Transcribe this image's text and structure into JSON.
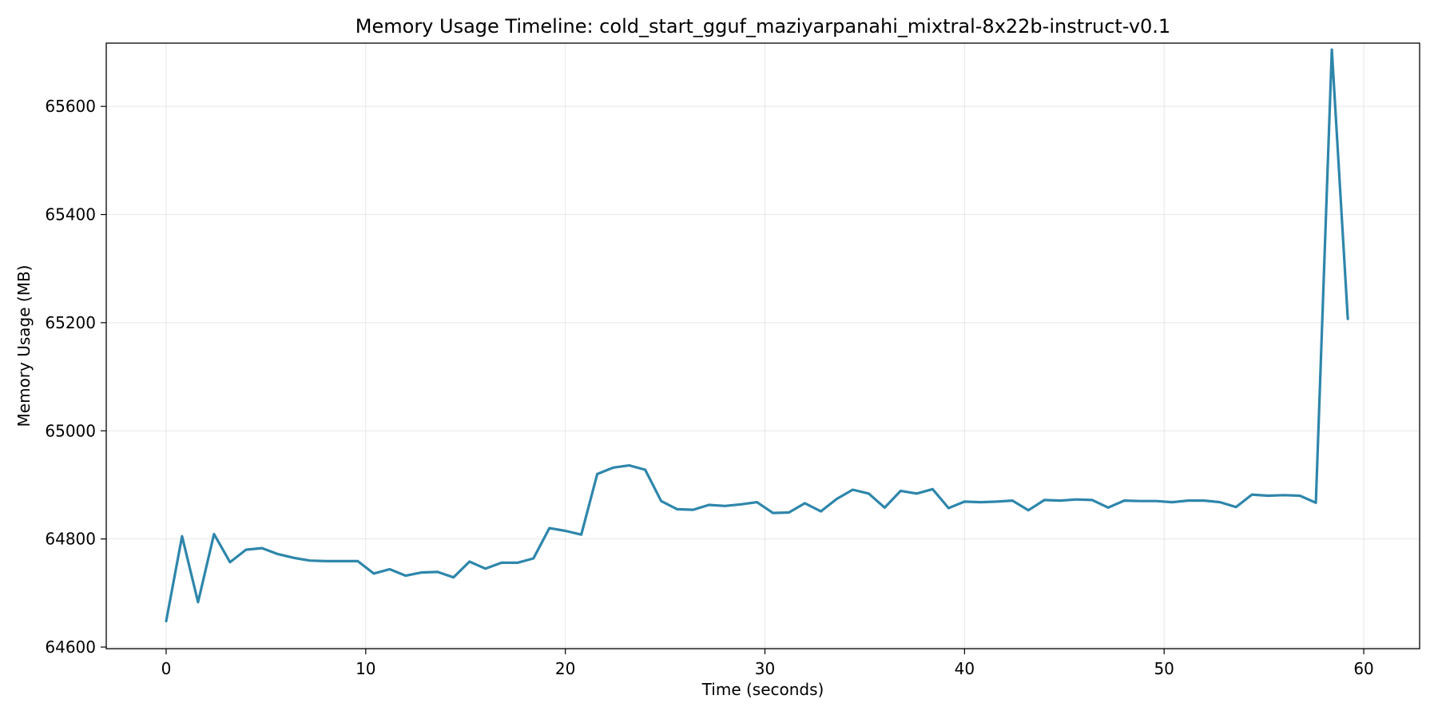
{
  "chart_data": {
    "type": "line",
    "title": "Memory Usage Timeline: cold_start_gguf_maziyarpanahi_mixtral-8x22b-instruct-v0.1",
    "xlabel": "Time (seconds)",
    "ylabel": "Memory Usage (MB)",
    "xlim": [
      -3,
      62.8
    ],
    "ylim": [
      64597,
      65717
    ],
    "x_ticks": [
      0,
      10,
      20,
      30,
      40,
      50,
      60
    ],
    "y_ticks": [
      64600,
      64800,
      65000,
      65200,
      65400,
      65600
    ],
    "grid": true,
    "line_color": "#2e86ab",
    "series": [
      {
        "x": [
          0,
          0.8,
          1.6,
          2.4,
          3.2,
          4.0,
          4.8,
          5.6,
          6.4,
          7.2,
          8.0,
          8.8,
          9.6,
          10.4,
          11.2,
          12.0,
          12.8,
          13.6,
          14.4,
          15.2,
          16.0,
          16.8,
          17.6,
          18.4,
          19.2,
          20.0,
          20.8,
          21.6,
          22.4,
          23.2,
          24.0,
          24.8,
          25.6,
          26.4,
          27.2,
          28.0,
          28.8,
          29.6,
          30.4,
          31.2,
          32.0,
          32.8,
          33.6,
          34.4,
          35.2,
          36.0,
          36.8,
          37.6,
          38.4,
          39.2,
          40.0,
          40.8,
          41.6,
          42.4,
          43.2,
          44.0,
          44.8,
          45.6,
          46.4,
          47.2,
          48.0,
          48.8,
          49.6,
          50.4,
          51.2,
          52.0,
          52.8,
          53.6,
          54.4,
          55.2,
          56.0,
          56.8,
          57.6,
          58.4,
          59.2
        ],
        "y": [
          64648,
          64805,
          64683,
          64809,
          64757,
          64780,
          64783,
          64772,
          64765,
          64760,
          64759,
          64759,
          64759,
          64736,
          64744,
          64732,
          64738,
          64739,
          64729,
          64758,
          64745,
          64756,
          64756,
          64764,
          64820,
          64815,
          64808,
          64920,
          64932,
          64936,
          64928,
          64870,
          64855,
          64854,
          64863,
          64861,
          64864,
          64868,
          64848,
          64849,
          64866,
          64851,
          64874,
          64891,
          64884,
          64858,
          64889,
          64884,
          64892,
          64857,
          64869,
          64868,
          64869,
          64871,
          64853,
          64872,
          64871,
          64873,
          64872,
          64858,
          64871,
          64870,
          64870,
          64868,
          64871,
          64871,
          64868,
          64859,
          64882,
          64880,
          64881,
          64880,
          64867,
          65705,
          65207
        ]
      }
    ]
  }
}
